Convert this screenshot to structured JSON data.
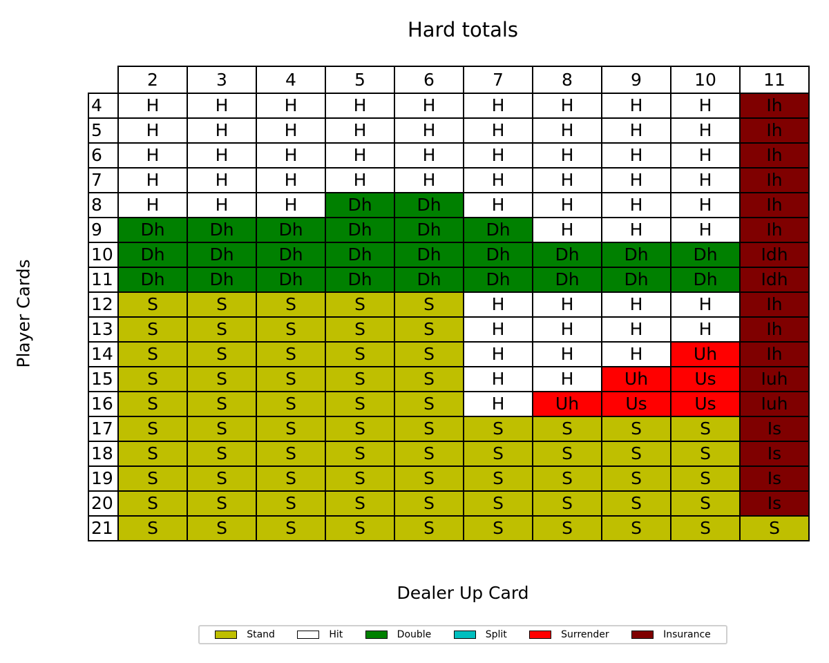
{
  "chart_data": {
    "type": "table",
    "title": "Hard totals",
    "xlabel": "Dealer Up Card",
    "ylabel": "Player Cards",
    "columns": [
      "2",
      "3",
      "4",
      "5",
      "6",
      "7",
      "8",
      "9",
      "10",
      "11"
    ],
    "rows": [
      {
        "label": "4",
        "cells": [
          "H",
          "H",
          "H",
          "H",
          "H",
          "H",
          "H",
          "H",
          "H",
          "Ih"
        ]
      },
      {
        "label": "5",
        "cells": [
          "H",
          "H",
          "H",
          "H",
          "H",
          "H",
          "H",
          "H",
          "H",
          "Ih"
        ]
      },
      {
        "label": "6",
        "cells": [
          "H",
          "H",
          "H",
          "H",
          "H",
          "H",
          "H",
          "H",
          "H",
          "Ih"
        ]
      },
      {
        "label": "7",
        "cells": [
          "H",
          "H",
          "H",
          "H",
          "H",
          "H",
          "H",
          "H",
          "H",
          "Ih"
        ]
      },
      {
        "label": "8",
        "cells": [
          "H",
          "H",
          "H",
          "Dh",
          "Dh",
          "H",
          "H",
          "H",
          "H",
          "Ih"
        ]
      },
      {
        "label": "9",
        "cells": [
          "Dh",
          "Dh",
          "Dh",
          "Dh",
          "Dh",
          "Dh",
          "H",
          "H",
          "H",
          "Ih"
        ]
      },
      {
        "label": "10",
        "cells": [
          "Dh",
          "Dh",
          "Dh",
          "Dh",
          "Dh",
          "Dh",
          "Dh",
          "Dh",
          "Dh",
          "Idh"
        ]
      },
      {
        "label": "11",
        "cells": [
          "Dh",
          "Dh",
          "Dh",
          "Dh",
          "Dh",
          "Dh",
          "Dh",
          "Dh",
          "Dh",
          "Idh"
        ]
      },
      {
        "label": "12",
        "cells": [
          "S",
          "S",
          "S",
          "S",
          "S",
          "H",
          "H",
          "H",
          "H",
          "Ih"
        ]
      },
      {
        "label": "13",
        "cells": [
          "S",
          "S",
          "S",
          "S",
          "S",
          "H",
          "H",
          "H",
          "H",
          "Ih"
        ]
      },
      {
        "label": "14",
        "cells": [
          "S",
          "S",
          "S",
          "S",
          "S",
          "H",
          "H",
          "H",
          "Uh",
          "Ih"
        ]
      },
      {
        "label": "15",
        "cells": [
          "S",
          "S",
          "S",
          "S",
          "S",
          "H",
          "H",
          "Uh",
          "Us",
          "Iuh"
        ]
      },
      {
        "label": "16",
        "cells": [
          "S",
          "S",
          "S",
          "S",
          "S",
          "H",
          "Uh",
          "Us",
          "Us",
          "Iuh"
        ]
      },
      {
        "label": "17",
        "cells": [
          "S",
          "S",
          "S",
          "S",
          "S",
          "S",
          "S",
          "S",
          "S",
          "Is"
        ]
      },
      {
        "label": "18",
        "cells": [
          "S",
          "S",
          "S",
          "S",
          "S",
          "S",
          "S",
          "S",
          "S",
          "Is"
        ]
      },
      {
        "label": "19",
        "cells": [
          "S",
          "S",
          "S",
          "S",
          "S",
          "S",
          "S",
          "S",
          "S",
          "Is"
        ]
      },
      {
        "label": "20",
        "cells": [
          "S",
          "S",
          "S",
          "S",
          "S",
          "S",
          "S",
          "S",
          "S",
          "Is"
        ]
      },
      {
        "label": "21",
        "cells": [
          "S",
          "S",
          "S",
          "S",
          "S",
          "S",
          "S",
          "S",
          "S",
          "S"
        ]
      }
    ],
    "legend": [
      {
        "name": "Stand",
        "color": "#bfbf00"
      },
      {
        "name": "Hit",
        "color": "#ffffff"
      },
      {
        "name": "Double",
        "color": "#008000"
      },
      {
        "name": "Split",
        "color": "#00bfbf"
      },
      {
        "name": "Surrender",
        "color": "#ff0000"
      },
      {
        "name": "Insurance",
        "color": "#7f0000"
      }
    ],
    "legend_placement": "bottom-center"
  }
}
